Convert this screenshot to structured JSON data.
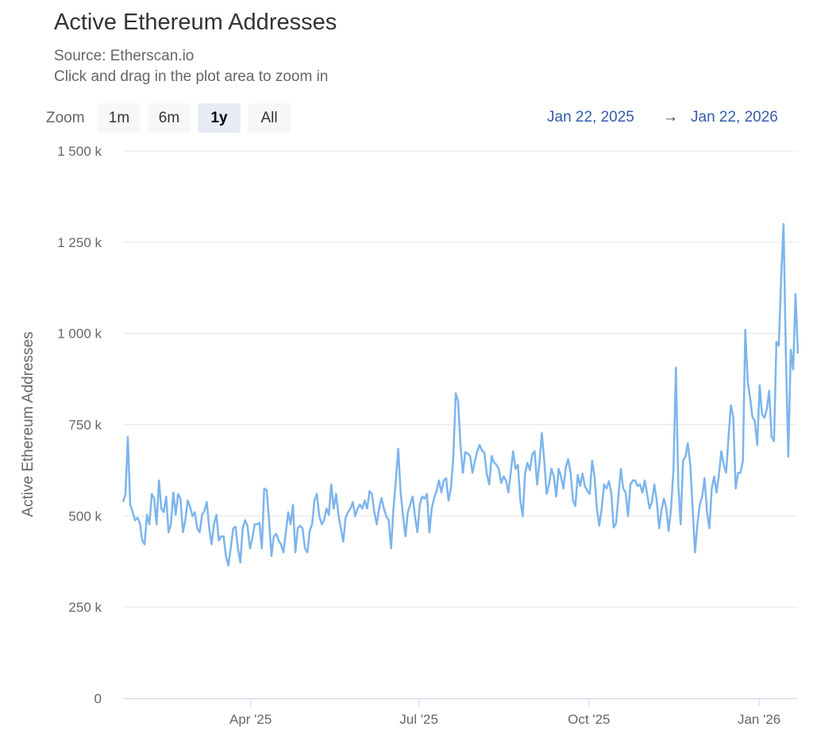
{
  "header": {
    "title": "Active Ethereum Addresses",
    "source": "Source: Etherscan.io",
    "hint": "Click and drag in the plot area to zoom in"
  },
  "range_selector": {
    "zoom_label": "Zoom",
    "buttons": [
      {
        "label": "1m",
        "selected": false
      },
      {
        "label": "6m",
        "selected": false
      },
      {
        "label": "1y",
        "selected": true
      },
      {
        "label": "All",
        "selected": false
      }
    ],
    "from": "Jan 22, 2025",
    "arrow": "→",
    "to": "Jan 22, 2026"
  },
  "colors": {
    "line": "#7cb5ec",
    "grid": "#e6e6e6",
    "range_text": "#335cad"
  },
  "chart_data": {
    "type": "line",
    "title": "Active Ethereum Addresses",
    "ylabel": "Active Ethereum Addresses",
    "ylim": [
      0,
      1500000
    ],
    "yticks": [
      {
        "v": 0,
        "label": "0"
      },
      {
        "v": 250000,
        "label": "250 k"
      },
      {
        "v": 500000,
        "label": "500 k"
      },
      {
        "v": 750000,
        "label": "750 k"
      },
      {
        "v": 1000000,
        "label": "1 000 k"
      },
      {
        "v": 1250000,
        "label": "1 250 k"
      },
      {
        "v": 1500000,
        "label": "1 500 k"
      }
    ],
    "xticks": [
      {
        "date": "2025-04-01",
        "label": "Apr '25"
      },
      {
        "date": "2025-07-01",
        "label": "Jul '25"
      },
      {
        "date": "2025-10-01",
        "label": "Oct '25"
      },
      {
        "date": "2026-01-01",
        "label": "Jan '26"
      }
    ],
    "x_start": "2025-01-22",
    "x_end": "2026-01-22",
    "grid": true,
    "legend": "none",
    "values_k": [
      538,
      560,
      716,
      531,
      510,
      488,
      495,
      481,
      433,
      422,
      503,
      477,
      560,
      547,
      477,
      597,
      520,
      510,
      553,
      455,
      477,
      564,
      503,
      560,
      547,
      455,
      488,
      542,
      525,
      499,
      510,
      466,
      455,
      503,
      514,
      538,
      466,
      422,
      477,
      503,
      433,
      444,
      444,
      390,
      364,
      411,
      466,
      470,
      411,
      372,
      466,
      488,
      473,
      411,
      438,
      477,
      477,
      481,
      411,
      575,
      571,
      488,
      390,
      444,
      451,
      433,
      422,
      400,
      455,
      510,
      477,
      531,
      400,
      466,
      473,
      466,
      411,
      400,
      459,
      477,
      542,
      560,
      499,
      477,
      488,
      520,
      503,
      586,
      520,
      560,
      503,
      466,
      429,
      495,
      510,
      520,
      538,
      499,
      520,
      531,
      520,
      542,
      520,
      568,
      560,
      510,
      477,
      520,
      549,
      520,
      499,
      488,
      411,
      520,
      597,
      684,
      564,
      499,
      444,
      510,
      531,
      553,
      499,
      455,
      531,
      553,
      547,
      560,
      455,
      520,
      549,
      568,
      597,
      564,
      597,
      603,
      542,
      575,
      662,
      836,
      814,
      694,
      618,
      675,
      671,
      664,
      618,
      651,
      677,
      694,
      679,
      673,
      614,
      586,
      664,
      647,
      640,
      629,
      590,
      608,
      597,
      564,
      618,
      677,
      629,
      640,
      542,
      499,
      618,
      645,
      625,
      668,
      677,
      586,
      647,
      727,
      651,
      560,
      586,
      629,
      608,
      553,
      629,
      608,
      575,
      633,
      655,
      618,
      542,
      527,
      612,
      582,
      616,
      582,
      568,
      560,
      651,
      608,
      520,
      473,
      520,
      586,
      575,
      595,
      564,
      468,
      479,
      553,
      629,
      575,
      564,
      499,
      586,
      597,
      597,
      582,
      586,
      564,
      597,
      560,
      520,
      538,
      586,
      542,
      466,
      516,
      547,
      520,
      459,
      520,
      629,
      906,
      586,
      477,
      651,
      662,
      699,
      640,
      520,
      400,
      477,
      531,
      553,
      603,
      510,
      466,
      575,
      608,
      564,
      612,
      677,
      640,
      618,
      716,
      803,
      771,
      575,
      618,
      618,
      651,
      1010,
      869,
      825,
      771,
      760,
      694,
      858,
      779,
      769,
      792,
      843,
      716,
      705,
      977,
      966,
      1152,
      1300,
      934,
      662,
      955,
      901,
      1108,
      945
    ]
  }
}
